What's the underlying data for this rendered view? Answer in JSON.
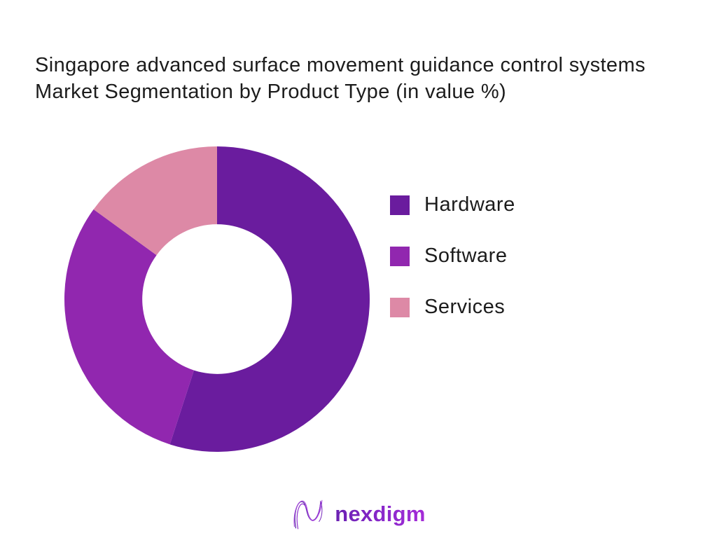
{
  "title": {
    "lines": [
      "Singapore advanced surface movement guidance control systems",
      "Market Segmentation by Product Type (in value %)"
    ]
  },
  "chart_data": {
    "type": "pie",
    "subtype": "donut",
    "title": "Singapore advanced surface movement guidance control systems Market Segmentation by Product Type (in value %)",
    "categories": [
      "Hardware",
      "Software",
      "Services"
    ],
    "values": [
      55,
      30,
      15
    ],
    "unit": "value %",
    "colors": [
      "#6A1C9E",
      "#9127AF",
      "#DD89A6"
    ],
    "start_angle_deg": 0,
    "direction": "clockwise",
    "inner_radius_ratio": 0.49,
    "legend_position": "right",
    "data_labels": false,
    "background": "#FFFFFF"
  },
  "legend": {
    "items": [
      {
        "label": "Hardware",
        "color": "#6A1C9E"
      },
      {
        "label": "Software",
        "color": "#9127AF"
      },
      {
        "label": "Services",
        "color": "#DD89A6"
      }
    ]
  },
  "logo": {
    "text": "nexdigm",
    "mark": "nexdigm-n-wave-mark",
    "mark_colors": [
      "#5E2AA8",
      "#8F2FCE",
      "#AB4BDF"
    ],
    "text_gradient": [
      "#6A21B2",
      "#A52BD8"
    ]
  },
  "colors": {
    "page_background": "#FFFFFF",
    "title_text": "#1C1C1C"
  }
}
